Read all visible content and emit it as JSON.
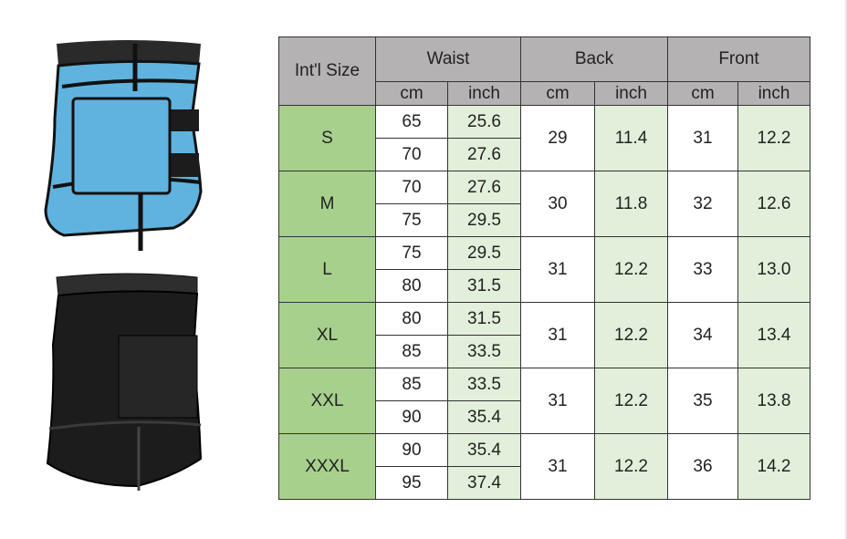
{
  "headers": {
    "size": "Int'l Size",
    "waist": "Waist",
    "back": "Back",
    "front": "Front",
    "cm": "cm",
    "inch": "inch"
  },
  "rows": [
    {
      "size": "S",
      "waist": [
        [
          "65",
          "25.6"
        ],
        [
          "70",
          "27.6"
        ]
      ],
      "back_cm": "29",
      "back_inch": "11.4",
      "front_cm": "31",
      "front_inch": "12.2"
    },
    {
      "size": "M",
      "waist": [
        [
          "70",
          "27.6"
        ],
        [
          "75",
          "29.5"
        ]
      ],
      "back_cm": "30",
      "back_inch": "11.8",
      "front_cm": "32",
      "front_inch": "12.6"
    },
    {
      "size": "L",
      "waist": [
        [
          "75",
          "29.5"
        ],
        [
          "80",
          "31.5"
        ]
      ],
      "back_cm": "31",
      "back_inch": "12.2",
      "front_cm": "33",
      "front_inch": "13.0"
    },
    {
      "size": "XL",
      "waist": [
        [
          "80",
          "31.5"
        ],
        [
          "85",
          "33.5"
        ]
      ],
      "back_cm": "31",
      "back_inch": "12.2",
      "front_cm": "34",
      "front_inch": "13.4"
    },
    {
      "size": "XXL",
      "waist": [
        [
          "85",
          "33.5"
        ],
        [
          "90",
          "35.4"
        ]
      ],
      "back_cm": "31",
      "back_inch": "12.2",
      "front_cm": "35",
      "front_inch": "13.8"
    },
    {
      "size": "XXXL",
      "waist": [
        [
          "90",
          "35.4"
        ],
        [
          "95",
          "37.4"
        ]
      ],
      "back_cm": "31",
      "back_inch": "12.2",
      "front_cm": "36",
      "front_inch": "14.2"
    }
  ],
  "colors": {
    "header": "#b4b2b2",
    "size_col": "#a8d08d",
    "inch_col": "#e2efda",
    "belt_blue": "#5fb3de",
    "belt_black": "#1c1c1c"
  }
}
